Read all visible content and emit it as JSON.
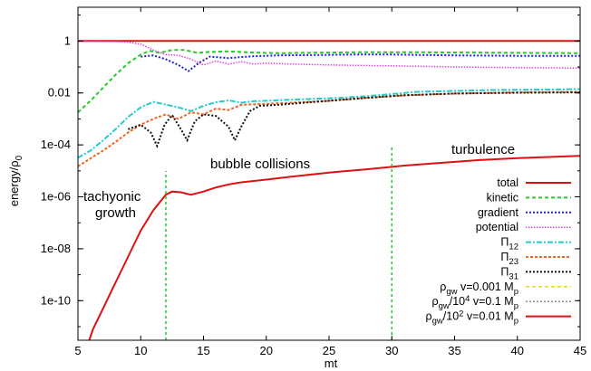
{
  "chart_data": {
    "type": "line",
    "xlabel": "mt",
    "ylabel": "energy/ρ",
    "ylabel_sub": "0",
    "xlim": [
      5,
      45
    ],
    "ylim": [
      3e-12,
      20
    ],
    "y_scale": "log",
    "x_ticks": [
      "5",
      "10",
      "15",
      "20",
      "25",
      "30",
      "35",
      "40",
      "45"
    ],
    "x_tick_values": [
      5,
      10,
      15,
      20,
      25,
      30,
      35,
      40,
      45
    ],
    "y_ticks": [
      "1",
      "0.01",
      "1e-04",
      "1e-06",
      "1e-08",
      "1e-10"
    ],
    "y_tick_values": [
      1,
      0.01,
      0.0001,
      1e-06,
      1e-08,
      1e-10
    ],
    "annotations": {
      "growth_line1": "tachyonic",
      "growth_line2": "growth",
      "collisions": "bubble collisions",
      "turbulence": "turbulence"
    },
    "vlines": [
      {
        "x": 12,
        "y_range": [
          3e-12,
          1e-05
        ],
        "color": "#22cc22"
      },
      {
        "x": 30,
        "y_range": [
          3e-12,
          0.0001
        ],
        "color": "#22cc22"
      }
    ],
    "legend": {
      "placement": "bottom-right",
      "entries": [
        {
          "main": "total",
          "color": "#dd1111",
          "dash": "none",
          "width": 2
        },
        {
          "main": "kinetic",
          "color": "#22cc22",
          "dash": "4,3",
          "width": 2
        },
        {
          "main": "gradient",
          "color": "#2222cc",
          "dash": "2,2",
          "width": 2
        },
        {
          "main": "potential",
          "color": "#dd44dd",
          "dash": "1.5,1.5",
          "width": 1.5
        },
        {
          "main": "Π",
          "sub": "12",
          "color": "#22cccc",
          "dash": "6,2,2,2",
          "width": 2
        },
        {
          "main": "Π",
          "sub": "23",
          "color": "#ee6622",
          "dash": "3,2",
          "width": 2
        },
        {
          "main": "Π",
          "sub": "31",
          "color": "#111111",
          "dash": "2,2",
          "width": 2
        },
        {
          "parts": [
            [
              "ρ",
              ""
            ],
            [
              "gw",
              "sub"
            ],
            [
              " v=0.001 M",
              ""
            ],
            [
              "p",
              "sub"
            ]
          ],
          "color": "#dddd22",
          "dash": "4,3",
          "width": 1.5
        },
        {
          "parts": [
            [
              "ρ",
              ""
            ],
            [
              "gw",
              "sub"
            ],
            [
              "/10",
              ""
            ],
            [
              "4",
              "sup"
            ],
            [
              " v=0.1 M",
              ""
            ],
            [
              "p",
              "sub"
            ]
          ],
          "color": "#888888",
          "dash": "2,2",
          "width": 1.5
        },
        {
          "parts": [
            [
              "ρ",
              ""
            ],
            [
              "gw",
              "sub"
            ],
            [
              "/10",
              ""
            ],
            [
              "2",
              "sup"
            ],
            [
              " v=0.01 M",
              ""
            ],
            [
              "p",
              "sub"
            ]
          ],
          "color": "#dd1111",
          "dash": "none",
          "width": 2
        }
      ]
    },
    "series": [
      {
        "name": "total",
        "color": "#dd1111",
        "dash": "none",
        "width": 2,
        "points": [
          [
            5,
            1
          ],
          [
            45,
            1
          ]
        ]
      },
      {
        "name": "kinetic",
        "color": "#22cc22",
        "dash": "4,3",
        "width": 2,
        "points": [
          [
            5,
            0.0018
          ],
          [
            6,
            0.005
          ],
          [
            7,
            0.016
          ],
          [
            8,
            0.05
          ],
          [
            9,
            0.14
          ],
          [
            10,
            0.3
          ],
          [
            10.7,
            0.42
          ],
          [
            11.5,
            0.35
          ],
          [
            12.5,
            0.45
          ],
          [
            13.5,
            0.45
          ],
          [
            14.5,
            0.35
          ],
          [
            15.5,
            0.38
          ],
          [
            17,
            0.4
          ],
          [
            19,
            0.36
          ],
          [
            21,
            0.34
          ],
          [
            23,
            0.35
          ],
          [
            25,
            0.36
          ],
          [
            28,
            0.37
          ],
          [
            32,
            0.37
          ],
          [
            36,
            0.36
          ],
          [
            40,
            0.35
          ],
          [
            45,
            0.34
          ]
        ]
      },
      {
        "name": "gradient",
        "color": "#2222cc",
        "dash": "2,2",
        "width": 2,
        "points": [
          [
            10,
            0.25
          ],
          [
            11,
            0.28
          ],
          [
            12,
            0.2
          ],
          [
            13,
            0.12
          ],
          [
            13.8,
            0.07
          ],
          [
            14.7,
            0.15
          ],
          [
            15.5,
            0.25
          ],
          [
            17,
            0.22
          ],
          [
            19,
            0.26
          ],
          [
            21,
            0.28
          ],
          [
            24,
            0.29
          ],
          [
            27,
            0.3
          ],
          [
            30,
            0.3
          ],
          [
            35,
            0.28
          ],
          [
            40,
            0.27
          ],
          [
            45,
            0.27
          ]
        ]
      },
      {
        "name": "potential",
        "color": "#dd44dd",
        "dash": "1.5,1.5",
        "width": 1.5,
        "points": [
          [
            5,
            0.97
          ],
          [
            8,
            0.95
          ],
          [
            9,
            0.9
          ],
          [
            10,
            0.75
          ],
          [
            11,
            0.45
          ],
          [
            12,
            0.3
          ],
          [
            13,
            0.28
          ],
          [
            14,
            0.2
          ],
          [
            15,
            0.12
          ],
          [
            16,
            0.17
          ],
          [
            17,
            0.13
          ],
          [
            18,
            0.16
          ],
          [
            19,
            0.13
          ],
          [
            20,
            0.14
          ],
          [
            22,
            0.13
          ],
          [
            25,
            0.12
          ],
          [
            30,
            0.11
          ],
          [
            35,
            0.1
          ],
          [
            40,
            0.095
          ],
          [
            45,
            0.09
          ]
        ]
      },
      {
        "name": "Π12",
        "color": "#22cccc",
        "dash": "6,2,2,2",
        "width": 2,
        "points": [
          [
            5,
            3.2e-05
          ],
          [
            6,
            6e-05
          ],
          [
            7,
            0.00015
          ],
          [
            8,
            0.0004
          ],
          [
            9,
            0.0012
          ],
          [
            10,
            0.0028
          ],
          [
            11,
            0.0045
          ],
          [
            12,
            0.0036
          ],
          [
            13,
            0.0028
          ],
          [
            14,
            0.002
          ],
          [
            15,
            0.0032
          ],
          [
            16,
            0.0044
          ],
          [
            17,
            0.0052
          ],
          [
            18,
            0.0042
          ],
          [
            19,
            0.0048
          ],
          [
            20,
            0.005
          ],
          [
            22,
            0.0055
          ],
          [
            24,
            0.006
          ],
          [
            26,
            0.0065
          ],
          [
            28,
            0.0075
          ],
          [
            30,
            0.009
          ],
          [
            32,
            0.011
          ],
          [
            35,
            0.012
          ],
          [
            38,
            0.013
          ],
          [
            42,
            0.0135
          ],
          [
            45,
            0.014
          ]
        ]
      },
      {
        "name": "Π23",
        "color": "#ee6622",
        "dash": "3,2",
        "width": 2,
        "points": [
          [
            5,
            1.5e-05
          ],
          [
            6,
            3e-05
          ],
          [
            7,
            6e-05
          ],
          [
            8,
            0.00013
          ],
          [
            9,
            0.0003
          ],
          [
            10,
            0.0006
          ],
          [
            11,
            0.001
          ],
          [
            12,
            0.0015
          ],
          [
            13,
            0.001
          ],
          [
            14,
            0.0018
          ],
          [
            15,
            0.0015
          ],
          [
            16,
            0.0025
          ],
          [
            17,
            0.0022
          ],
          [
            18,
            0.0035
          ],
          [
            20,
            0.0038
          ],
          [
            22,
            0.0042
          ],
          [
            25,
            0.005
          ],
          [
            28,
            0.0065
          ],
          [
            31,
            0.008
          ],
          [
            35,
            0.0095
          ],
          [
            40,
            0.0105
          ],
          [
            45,
            0.011
          ]
        ]
      },
      {
        "name": "Π31",
        "color": "#111111",
        "dash": "2,2",
        "width": 2,
        "points": [
          [
            9,
            0.0004
          ],
          [
            10,
            0.0006
          ],
          [
            10.8,
            0.0003
          ],
          [
            11.3,
            9e-05
          ],
          [
            11.9,
            0.0006
          ],
          [
            12.5,
            0.0014
          ],
          [
            13.2,
            0.0004
          ],
          [
            13.7,
            0.00015
          ],
          [
            14.3,
            0.0008
          ],
          [
            15,
            0.0015
          ],
          [
            16,
            0.0013
          ],
          [
            17,
            0.0005
          ],
          [
            17.5,
            0.00015
          ],
          [
            18,
            0.0005
          ],
          [
            18.7,
            0.002
          ],
          [
            19.5,
            0.0032
          ],
          [
            21,
            0.0035
          ],
          [
            23,
            0.0042
          ],
          [
            25,
            0.005
          ],
          [
            28,
            0.0065
          ],
          [
            31,
            0.0082
          ],
          [
            35,
            0.0095
          ],
          [
            40,
            0.0102
          ],
          [
            45,
            0.0105
          ]
        ]
      },
      {
        "name": "ρgw/10^2 v=0.01 Mp",
        "color": "#dd1111",
        "dash": "none",
        "width": 2,
        "points": [
          [
            5.9,
            3e-12
          ],
          [
            6.2,
            8e-12
          ],
          [
            7,
            5e-11
          ],
          [
            8,
            5e-10
          ],
          [
            9,
            5e-09
          ],
          [
            10,
            5e-08
          ],
          [
            11,
            3e-07
          ],
          [
            12,
            1.2e-06
          ],
          [
            12.5,
            1.6e-06
          ],
          [
            13.2,
            1.5e-06
          ],
          [
            14,
            1.2e-06
          ],
          [
            15,
            1.6e-06
          ],
          [
            16,
            2.3e-06
          ],
          [
            17,
            3e-06
          ],
          [
            18,
            3.6e-06
          ],
          [
            20,
            4.6e-06
          ],
          [
            22,
            6e-06
          ],
          [
            25,
            8.6e-06
          ],
          [
            28,
            1.15e-05
          ],
          [
            31,
            1.6e-05
          ],
          [
            34,
            2.05e-05
          ],
          [
            37,
            2.6e-05
          ],
          [
            40,
            3.1e-05
          ],
          [
            43,
            3.5e-05
          ],
          [
            45,
            3.8e-05
          ]
        ]
      }
    ]
  }
}
